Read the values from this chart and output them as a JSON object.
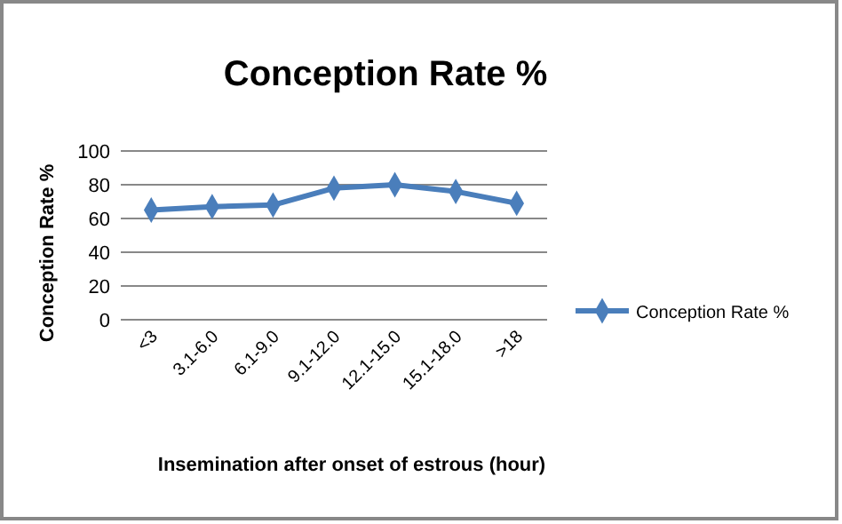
{
  "chart_data": {
    "type": "line",
    "title": "Conception Rate %",
    "xlabel": "Insemination after onset of estrous (hour)",
    "ylabel": "Conception Rate %",
    "categories": [
      "<3",
      "3.1-6.0",
      "6.1-9.0",
      "9.1-12.0",
      "12.1-15.0",
      "15.1-18.0",
      ">18"
    ],
    "series": [
      {
        "name": "Conception Rate %",
        "color": "#4a7ebb",
        "values": [
          65,
          67,
          68,
          78,
          80,
          76,
          69
        ]
      }
    ],
    "ylim": [
      0,
      100
    ],
    "yticks": [
      0,
      20,
      40,
      60,
      80,
      100
    ],
    "grid": "y",
    "legend": "right",
    "marker": "diamond"
  }
}
